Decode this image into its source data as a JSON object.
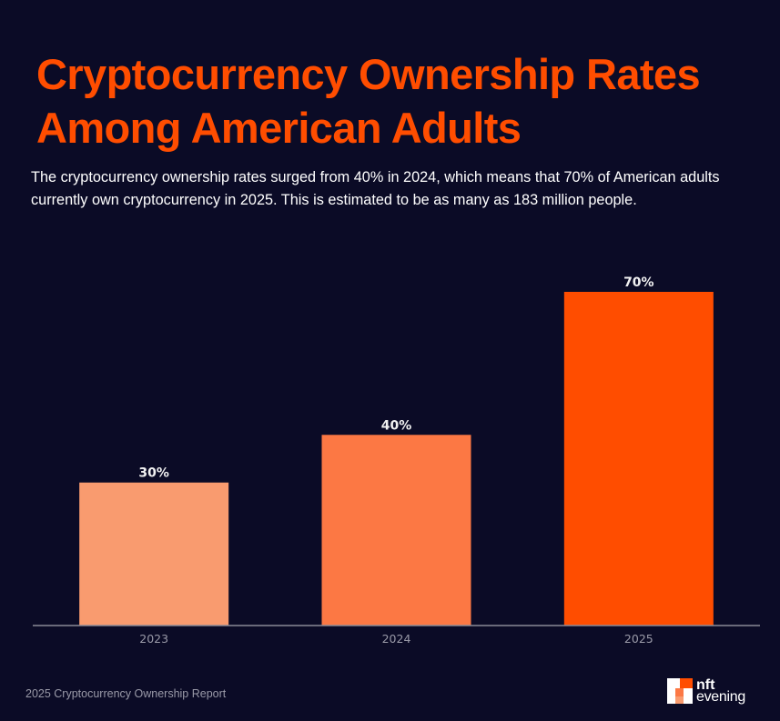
{
  "header": {
    "title": "Cryptocurrency Ownership Rates Among American Adults",
    "subtitle": "The cryptocurrency ownership rates surged from 40% in 2024, which means that 70% of American adults currently own cryptocurrency in 2025. This is estimated to be as many as 183 million people."
  },
  "colors": {
    "background": "#0b0b26",
    "title": "#ff4d00",
    "axis": "#8a8a96"
  },
  "chart_data": {
    "type": "bar",
    "title": "Cryptocurrency Ownership Rates Among American Adults",
    "xlabel": "",
    "ylabel": "",
    "categories": [
      "2023",
      "2024",
      "2025"
    ],
    "values": [
      30,
      40,
      70
    ],
    "value_labels": [
      "30%",
      "40%",
      "70%"
    ],
    "bar_colors": [
      "#f99b6f",
      "#fc7844",
      "#ff4d00"
    ],
    "ylim": [
      0,
      70
    ],
    "grid": false,
    "legend": "none",
    "unit": "%"
  },
  "footer": {
    "source": "2025 Cryptocurrency Ownership Report",
    "logo_line1": "nft",
    "logo_line2": "evening",
    "logo_icon": "nft-evening-logo-icon"
  }
}
